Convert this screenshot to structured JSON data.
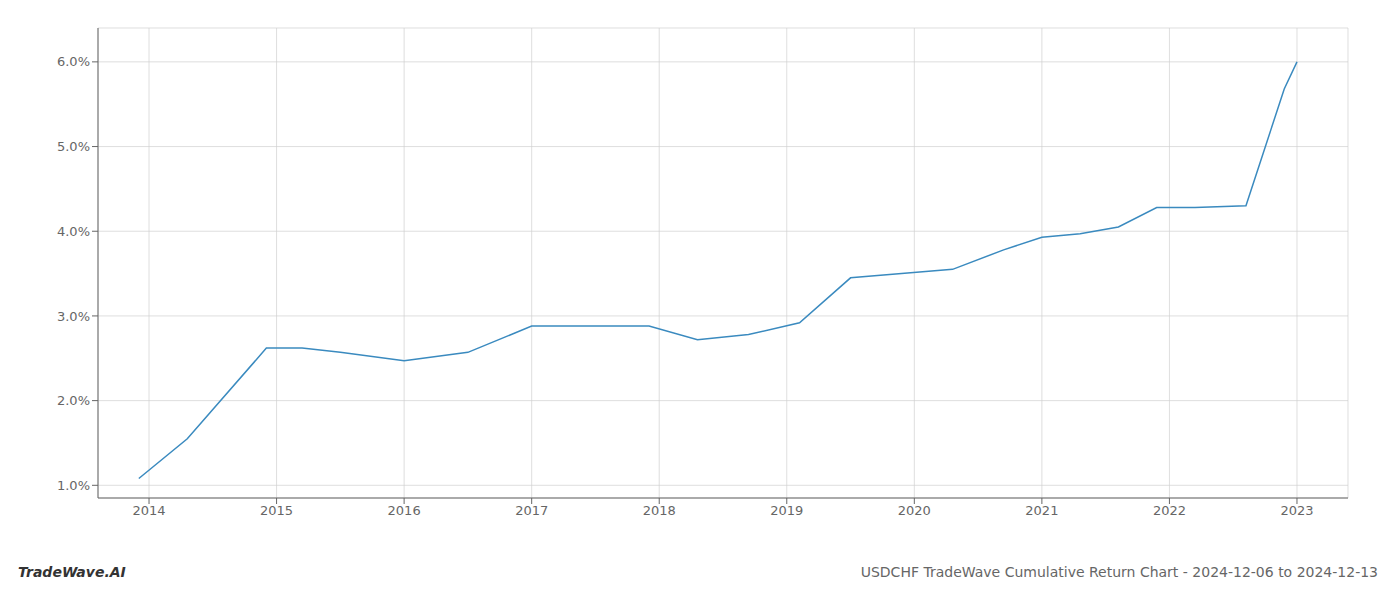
{
  "chart_data": {
    "type": "line",
    "title": "USDCHF TradeWave Cumulative Return Chart - 2024-12-06 to 2024-12-13",
    "annotations": [
      "TradeWave.AI"
    ],
    "x": [
      2013.92,
      2014.3,
      2014.92,
      2015.2,
      2015.5,
      2016.0,
      2016.5,
      2017.0,
      2017.5,
      2017.92,
      2018.3,
      2018.7,
      2019.1,
      2019.5,
      2019.9,
      2020.3,
      2020.7,
      2021.0,
      2021.3,
      2021.6,
      2021.9,
      2022.2,
      2022.6,
      2022.9,
      2023.0
    ],
    "values": [
      1.08,
      1.55,
      2.62,
      2.62,
      2.57,
      2.47,
      2.57,
      2.88,
      2.88,
      2.88,
      2.72,
      2.78,
      2.92,
      3.45,
      3.5,
      3.55,
      3.78,
      3.93,
      3.97,
      4.05,
      4.28,
      4.28,
      4.3,
      5.68,
      6.0
    ],
    "color": "#3a8abf",
    "xlim": [
      2013.6,
      2023.4
    ],
    "ylim": [
      0.85,
      6.4
    ],
    "xticks": [
      2014,
      2015,
      2016,
      2017,
      2018,
      2019,
      2020,
      2021,
      2022,
      2023
    ],
    "yticks": [
      {
        "value": 1.0,
        "label": "1.0%"
      },
      {
        "value": 2.0,
        "label": "2.0%"
      },
      {
        "value": 3.0,
        "label": "3.0%"
      },
      {
        "value": 4.0,
        "label": "4.0%"
      },
      {
        "value": 5.0,
        "label": "5.0%"
      },
      {
        "value": 6.0,
        "label": "6.0%"
      }
    ],
    "grid": true
  }
}
